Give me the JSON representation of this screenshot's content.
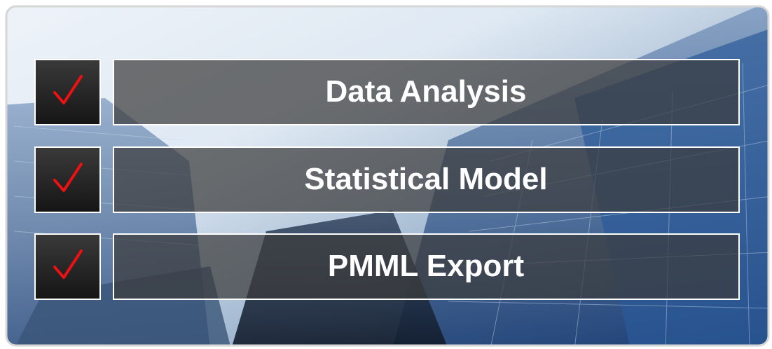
{
  "items": [
    {
      "label": "Data Analysis"
    },
    {
      "label": "Statistical Model"
    },
    {
      "label": "PMML Export"
    }
  ]
}
